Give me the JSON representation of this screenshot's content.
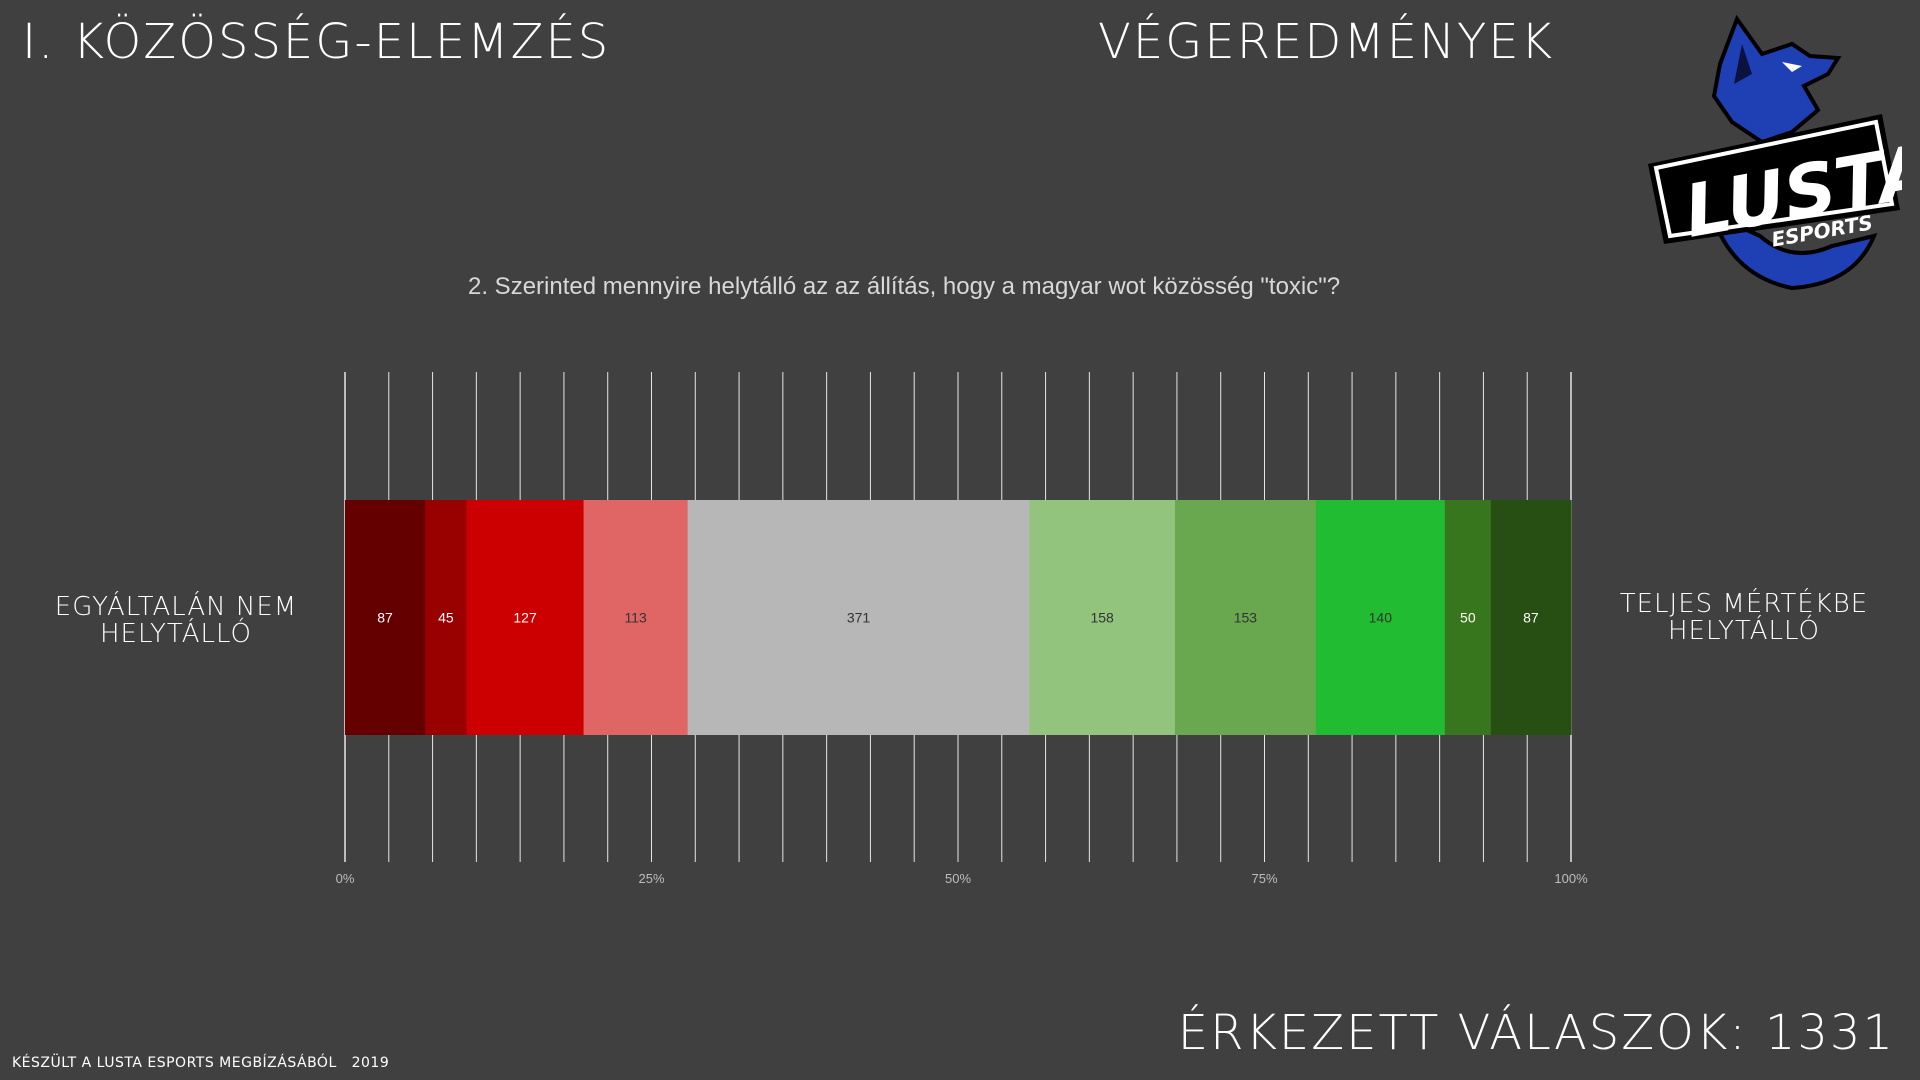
{
  "header": {
    "section_title": "I. KÖZÖSSÉG-ELEMZÉS",
    "results_title": "VÉGEREDMÉNYEK"
  },
  "logo": {
    "text_main": "LUSTA",
    "text_sub": "ESPORTS",
    "colors": {
      "blue": "#1f3fb5",
      "dark": "#0b1240",
      "white": "#ffffff",
      "black": "#000000"
    }
  },
  "chart_data": {
    "type": "bar",
    "orientation": "horizontal-stacked-100",
    "title": "2. Szerinted mennyire helytálló az az állítás, hogy a magyar wot közösség \"toxic\"?",
    "left_label": "EGYÁLTALÁN NEM HELYTÁLLÓ",
    "right_label": "TELJES MÉRTÉKBE HELYTÁLLÓ",
    "xlim": [
      0,
      100
    ],
    "x_ticks": [
      "0%",
      "25%",
      "50%",
      "75%",
      "100%"
    ],
    "grid": true,
    "series": [
      {
        "value": 87,
        "color": "#650000",
        "label_color": "#ffffff"
      },
      {
        "value": 45,
        "color": "#990000",
        "label_color": "#ffffff"
      },
      {
        "value": 127,
        "color": "#cc0000",
        "label_color": "#ffffff"
      },
      {
        "value": 113,
        "color": "#e06666",
        "label_color": "#333333"
      },
      {
        "value": 371,
        "color": "#b7b7b7",
        "label_color": "#333333"
      },
      {
        "value": 158,
        "color": "#93c47d",
        "label_color": "#333333"
      },
      {
        "value": 153,
        "color": "#6aa84f",
        "label_color": "#333333"
      },
      {
        "value": 140,
        "color": "#22bc32",
        "label_color": "#333333"
      },
      {
        "value": 50,
        "color": "#38761d",
        "label_color": "#ffffff"
      },
      {
        "value": 87,
        "color": "#274e13",
        "label_color": "#ffffff"
      }
    ]
  },
  "footer": {
    "responses_label": "ÉRKEZETT VÁLASZOK: 1331",
    "credit": "KÉSZÜLT A LUSTA ESPORTS MEGBÍZÁSÁBÓL",
    "year": "2019"
  }
}
